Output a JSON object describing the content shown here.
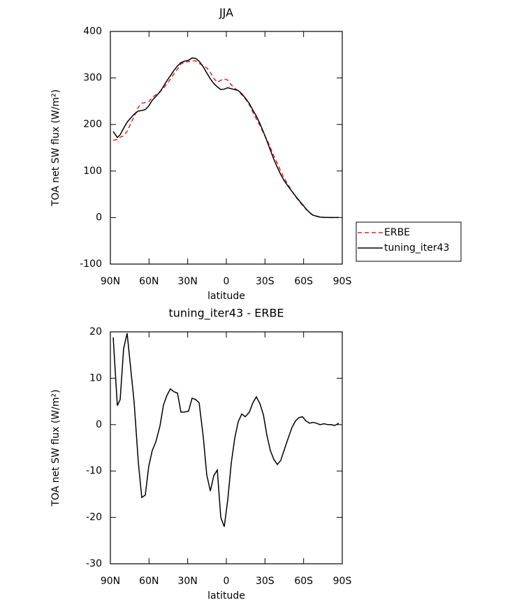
{
  "chart_data": [
    {
      "type": "line",
      "title": "JJA",
      "xlabel": "latitude",
      "ylabel": "TOA net SW flux (W/m²)",
      "x": [
        87.8,
        84.6,
        82.4,
        79.7,
        77.0,
        71.6,
        68.3,
        65.6,
        62.9,
        60.2,
        57.5,
        54.8,
        51.5,
        48.8,
        46.1,
        43.4,
        40.7,
        37.9,
        35.2,
        32.5,
        29.3,
        26.6,
        23.8,
        21.1,
        17.9,
        15.2,
        12.4,
        9.7,
        7.0,
        4.3,
        1.6,
        -1.1,
        -3.8,
        -6.5,
        -9.2,
        -12.0,
        -14.7,
        -17.9,
        -20.6,
        -23.3,
        -26.1,
        -28.8,
        -31.5,
        -34.2,
        -36.9,
        -39.6,
        -42.3,
        -45.0,
        -48.3,
        -51.0,
        -53.7,
        -56.4,
        -59.1,
        -61.8,
        -64.6,
        -67.3,
        -70.0,
        -72.7,
        -76.0,
        -78.7,
        -81.4,
        -84.1,
        -87.3
      ],
      "series": [
        {
          "name": "ERBE",
          "color": "#e8201f",
          "style": "dashed",
          "values": [
            166.2,
            167.9,
            172.6,
            175.6,
            185.3,
            217,
            237.1,
            245.7,
            247.2,
            249,
            257.6,
            263.8,
            270.3,
            277.8,
            287.7,
            297.3,
            308.9,
            319.2,
            330.3,
            333.3,
            335.1,
            337.3,
            336.6,
            331.3,
            326.6,
            321.8,
            312.3,
            299,
            290.8,
            295,
            298,
            295.3,
            285.4,
            278,
            272.4,
            263.7,
            255.3,
            242.3,
            226.3,
            212,
            197.5,
            181.9,
            167.3,
            150.6,
            132.5,
            116.6,
            99.7,
            84.4,
            68.7,
            56.6,
            45.2,
            35.5,
            26.3,
            18.2,
            10.7,
            4.5,
            2.7,
            1,
            0.3,
            0.2,
            0,
            0.2,
            0
          ]
        },
        {
          "name": "tuning_iter43",
          "color": "#000000",
          "style": "solid",
          "values": [
            185,
            172,
            178,
            192,
            205,
            222,
            229,
            230,
            232,
            240,
            252,
            260,
            270,
            282,
            294,
            305,
            316,
            326,
            333,
            336,
            338,
            343,
            342,
            336,
            324,
            311,
            298,
            288,
            281,
            275,
            276,
            279,
            277,
            275,
            273,
            266,
            257,
            245,
            231,
            218,
            202,
            184,
            165,
            145,
            125,
            108,
            92,
            79,
            66,
            56,
            46,
            37,
            28,
            19,
            11,
            5,
            3,
            1,
            0.5,
            0.2,
            0,
            0,
            0.3
          ]
        }
      ],
      "xlim": [
        90,
        -90
      ],
      "xticks": [
        {
          "value": 90,
          "label": "90N"
        },
        {
          "value": 60,
          "label": "60N"
        },
        {
          "value": 30,
          "label": "30N"
        },
        0,
        {
          "value": -30,
          "label": "30S"
        },
        {
          "value": -60,
          "label": "60S"
        },
        {
          "value": -90,
          "label": "90S"
        }
      ],
      "ylim": [
        -100,
        400
      ],
      "yticks": [
        -100,
        0,
        100,
        200,
        300,
        400
      ],
      "legend": "right"
    },
    {
      "type": "line",
      "title": "tuning_iter43 - ERBE",
      "xlabel": "latitude",
      "ylabel": "TOA net SW flux (W/m²)",
      "x": [
        87.8,
        84.6,
        82.4,
        79.7,
        77.0,
        71.6,
        68.3,
        65.6,
        62.9,
        60.2,
        57.5,
        54.8,
        51.5,
        48.8,
        46.1,
        43.4,
        40.7,
        37.9,
        35.2,
        32.5,
        29.3,
        26.6,
        23.8,
        21.1,
        17.9,
        15.2,
        12.4,
        9.7,
        7.0,
        4.3,
        1.6,
        -1.1,
        -3.8,
        -6.5,
        -9.2,
        -12.0,
        -14.7,
        -17.9,
        -20.6,
        -23.3,
        -26.1,
        -28.8,
        -31.5,
        -34.2,
        -36.9,
        -39.6,
        -42.3,
        -45.0,
        -48.3,
        -51.0,
        -53.7,
        -56.4,
        -59.1,
        -61.8,
        -64.6,
        -67.3,
        -70.0,
        -72.7,
        -76.0,
        -78.7,
        -81.4,
        -84.1,
        -87.3
      ],
      "values": [
        18.8,
        4.1,
        5.4,
        16.4,
        19.7,
        5.0,
        -8.1,
        -15.7,
        -15.2,
        -9.0,
        -5.6,
        -3.8,
        -0.3,
        4.2,
        6.3,
        7.7,
        7.1,
        6.8,
        2.7,
        2.7,
        2.9,
        5.7,
        5.4,
        4.7,
        -2.6,
        -10.8,
        -14.3,
        -11.0,
        -9.8,
        -20.0,
        -22.0,
        -16.3,
        -8.4,
        -3.0,
        0.6,
        2.3,
        1.7,
        2.7,
        4.7,
        6.0,
        4.5,
        2.1,
        -2.3,
        -5.6,
        -7.5,
        -8.6,
        -7.7,
        -5.4,
        -2.7,
        -0.6,
        0.8,
        1.5,
        1.7,
        0.8,
        0.3,
        0.5,
        0.3,
        0,
        0.2,
        0,
        0,
        -0.2,
        0.3
      ],
      "color": "#000000",
      "xlim": [
        90,
        -90
      ],
      "xticks": [
        {
          "value": 90,
          "label": "90N"
        },
        {
          "value": 60,
          "label": "60N"
        },
        {
          "value": 30,
          "label": "30N"
        },
        0,
        {
          "value": -30,
          "label": "30S"
        },
        {
          "value": -60,
          "label": "60S"
        },
        {
          "value": -90,
          "label": "90S"
        }
      ],
      "ylim": [
        -30,
        20
      ],
      "yticks": [
        -30,
        -20,
        -10,
        0,
        10,
        20
      ]
    }
  ]
}
